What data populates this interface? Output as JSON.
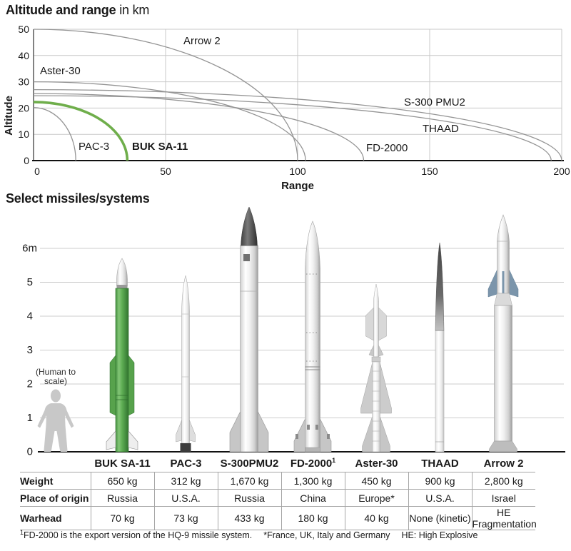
{
  "header": {
    "title_bold": "Altitude and range",
    "title_unit": " in km"
  },
  "chart_data": {
    "type": "line",
    "title": "Altitude and range in km",
    "xlabel": "Range",
    "ylabel": "Altitude",
    "x_unit": "km",
    "y_unit": "km",
    "xlim": [
      0,
      200
    ],
    "ylim": [
      0,
      50
    ],
    "xticks": [
      0,
      50,
      100,
      150,
      200
    ],
    "yticks": [
      0,
      10,
      20,
      30,
      40,
      50
    ],
    "grid": true,
    "legend_position": "inline-labels",
    "series": [
      {
        "name": "Arrow 2",
        "start_altitude_km": 50,
        "max_range_km": 100,
        "highlight": false
      },
      {
        "name": "Aster-30",
        "start_altitude_km": 30,
        "max_range_km": 103,
        "highlight": false
      },
      {
        "name": "S-300 PMU2",
        "start_altitude_km": 27,
        "max_range_km": 200,
        "highlight": false
      },
      {
        "name": "FD-2000",
        "start_altitude_km": 25.5,
        "max_range_km": 125,
        "highlight": false
      },
      {
        "name": "THAAD",
        "start_altitude_km": 24.7,
        "max_range_km": 196,
        "highlight": false
      },
      {
        "name": "BUK SA-11",
        "start_altitude_km": 22.3,
        "max_range_km": 35.5,
        "highlight": true
      },
      {
        "name": "PAC-3",
        "start_altitude_km": 20.2,
        "max_range_km": 16,
        "highlight": false
      }
    ],
    "colors": {
      "line": "#949494",
      "highlight": "#6fae4b",
      "grid": "#c9c9c9"
    }
  },
  "section2": {
    "title": "Select missiles/systems"
  },
  "scale": {
    "labels": [
      "6m",
      "5",
      "4",
      "3",
      "2",
      "1",
      "0"
    ],
    "max_m": 6,
    "human_note": [
      "(Human to",
      "scale)"
    ]
  },
  "missiles": [
    {
      "name": "BUK SA-11",
      "height_m": 5.7,
      "weight": "650 kg",
      "origin": "Russia",
      "warhead": "70 kg"
    },
    {
      "name": "PAC-3",
      "height_m": 5.2,
      "weight": "312 kg",
      "origin": "U.S.A.",
      "warhead": "73 kg"
    },
    {
      "name": "S-300PMU2",
      "height_m": 7.2,
      "weight": "1,670 kg",
      "origin": "Russia",
      "warhead": "433 kg"
    },
    {
      "name": "FD-2000",
      "name_sup": "1",
      "height_m": 6.8,
      "weight": "1,300 kg",
      "origin": "China",
      "warhead": "180 kg"
    },
    {
      "name": "Aster-30",
      "height_m": 4.9,
      "weight": "450 kg",
      "origin": "Europe*",
      "warhead": "40 kg"
    },
    {
      "name": "THAAD",
      "height_m": 6.2,
      "weight": "900 kg",
      "origin": "U.S.A.",
      "warhead": "None (kinetic)"
    },
    {
      "name": "Arrow 2",
      "height_m": 7.0,
      "weight": "2,800 kg",
      "origin": "Israel",
      "warhead": "HE Fragmentation"
    }
  ],
  "table": {
    "row_labels": [
      "Weight",
      "Place of origin",
      "Warhead"
    ],
    "row_keys": [
      "weight",
      "origin",
      "warhead"
    ]
  },
  "footnote": {
    "sup": "1",
    "text1": "FD-2000 is the export version of the HQ-9 missile system.",
    "text2": "*France, UK, Italy and Germany",
    "text3": "HE: High Explosive"
  }
}
